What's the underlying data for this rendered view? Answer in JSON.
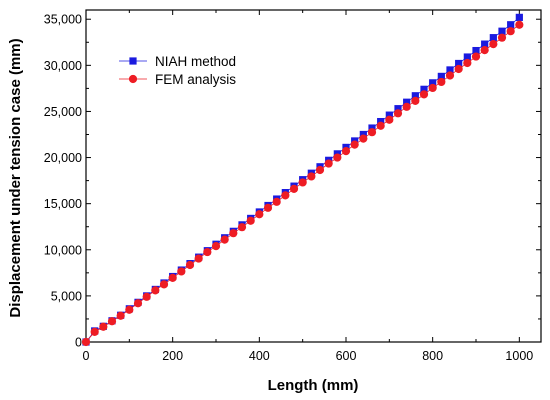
{
  "chart_data": {
    "type": "scatter",
    "title": "",
    "xlabel": "Length (mm)",
    "ylabel": "Displacement under tension case (mm)",
    "xlim": [
      0,
      1050
    ],
    "ylim": [
      0,
      36000
    ],
    "x_ticks": [
      0,
      200,
      400,
      600,
      800,
      1000
    ],
    "x_tick_labels": [
      "0",
      "200",
      "400",
      "600",
      "800",
      "1000"
    ],
    "y_ticks": [
      0,
      5000,
      10000,
      15000,
      20000,
      25000,
      30000,
      35000
    ],
    "y_tick_labels": [
      "0",
      "5,000",
      "10,000",
      "15,000",
      "20,000",
      "25,000",
      "30,000",
      "35,000"
    ],
    "grid": false,
    "legend_position": "top-left",
    "series": [
      {
        "name": "NIAH method",
        "marker": "square",
        "color": "#1a1adf",
        "line": true,
        "x": [
          0,
          20,
          40,
          60,
          80,
          100,
          120,
          140,
          160,
          180,
          200,
          220,
          240,
          260,
          280,
          300,
          320,
          340,
          360,
          380,
          400,
          420,
          440,
          460,
          480,
          500,
          520,
          540,
          560,
          580,
          600,
          620,
          640,
          660,
          680,
          700,
          720,
          740,
          760,
          780,
          800,
          820,
          840,
          860,
          880,
          900,
          920,
          940,
          960,
          980,
          1000
        ],
        "y": [
          0,
          1200,
          1700,
          2300,
          2900,
          3600,
          4300,
          5000,
          5700,
          6400,
          7100,
          7800,
          8500,
          9200,
          9900,
          10600,
          11300,
          12000,
          12700,
          13400,
          14100,
          14800,
          15500,
          16200,
          16900,
          17600,
          18300,
          19000,
          19700,
          20400,
          21100,
          21800,
          22500,
          23200,
          23900,
          24600,
          25300,
          26000,
          26700,
          27400,
          28100,
          28800,
          29500,
          30200,
          30900,
          31600,
          32300,
          33000,
          33700,
          34400,
          35200
        ]
      },
      {
        "name": "FEM analysis",
        "marker": "circle",
        "color": "#ee1c24",
        "line": true,
        "x": [
          0,
          20,
          40,
          60,
          80,
          100,
          120,
          140,
          160,
          180,
          200,
          220,
          240,
          260,
          280,
          300,
          320,
          340,
          360,
          380,
          400,
          420,
          440,
          460,
          480,
          500,
          520,
          540,
          560,
          580,
          600,
          620,
          640,
          660,
          680,
          700,
          720,
          740,
          760,
          780,
          800,
          820,
          840,
          860,
          880,
          900,
          920,
          940,
          960,
          980,
          1000
        ],
        "y": [
          0,
          1100,
          1650,
          2250,
          2850,
          3500,
          4200,
          4900,
          5600,
          6250,
          6950,
          7650,
          8350,
          9050,
          9750,
          10400,
          11100,
          11800,
          12450,
          13150,
          13850,
          14550,
          15200,
          15900,
          16600,
          17300,
          17950,
          18650,
          19350,
          20000,
          20700,
          21400,
          22050,
          22750,
          23450,
          24100,
          24800,
          25500,
          26150,
          26850,
          27550,
          28200,
          28900,
          29600,
          30250,
          30950,
          31650,
          32300,
          33000,
          33700,
          34400
        ]
      }
    ]
  }
}
